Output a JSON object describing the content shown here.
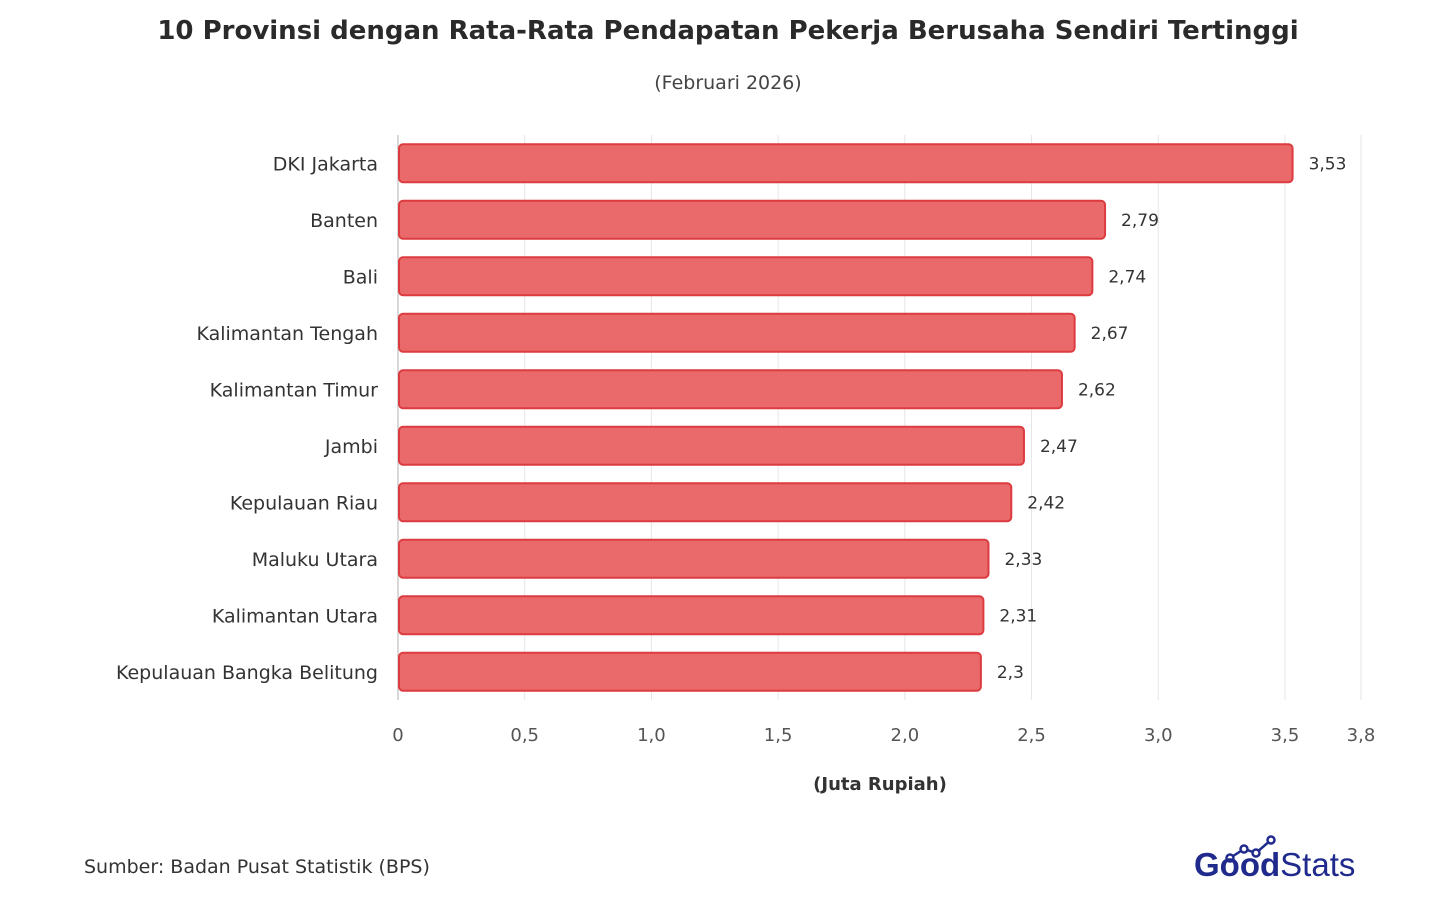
{
  "title": "10 Provinsi dengan Rata-Rata Pendapatan Pekerja Berusaha Sendiri Tertinggi",
  "subtitle": "(Februari 2026)",
  "source": "Sumber: Badan Pusat Statistik (BPS)",
  "logo": {
    "part1": "Good",
    "part2": "Stats"
  },
  "colors": {
    "bar_fill": "#ea6a6c",
    "bar_stroke": "#dc3b40",
    "grid": "#e6e6e6",
    "logo_blue": "#1f2a8c"
  },
  "chart_data": {
    "type": "bar",
    "orientation": "horizontal",
    "categories": [
      "DKI Jakarta",
      "Banten",
      "Bali",
      "Kalimantan Tengah",
      "Kalimantan Timur",
      "Jambi",
      "Kepulauan Riau",
      "Maluku Utara",
      "Kalimantan Utara",
      "Kepulauan Bangka Belitung"
    ],
    "values": [
      3.53,
      2.79,
      2.74,
      2.67,
      2.62,
      2.47,
      2.42,
      2.33,
      2.31,
      2.3
    ],
    "value_labels": [
      "3,53",
      "2,79",
      "2,74",
      "2,67",
      "2,62",
      "2,47",
      "2,42",
      "2,33",
      "2,31",
      "2,3"
    ],
    "xlabel": "(Juta Rupiah)",
    "ylabel": "",
    "xlim": [
      0,
      3.8
    ],
    "ticks": [
      0,
      0.5,
      1.0,
      1.5,
      2.0,
      2.5,
      3.0,
      3.5,
      3.8
    ],
    "tick_labels": [
      "0",
      "0,5",
      "1,0",
      "1,5",
      "2,0",
      "2,5",
      "3,0",
      "3,5",
      "3,8"
    ],
    "grid": true
  }
}
